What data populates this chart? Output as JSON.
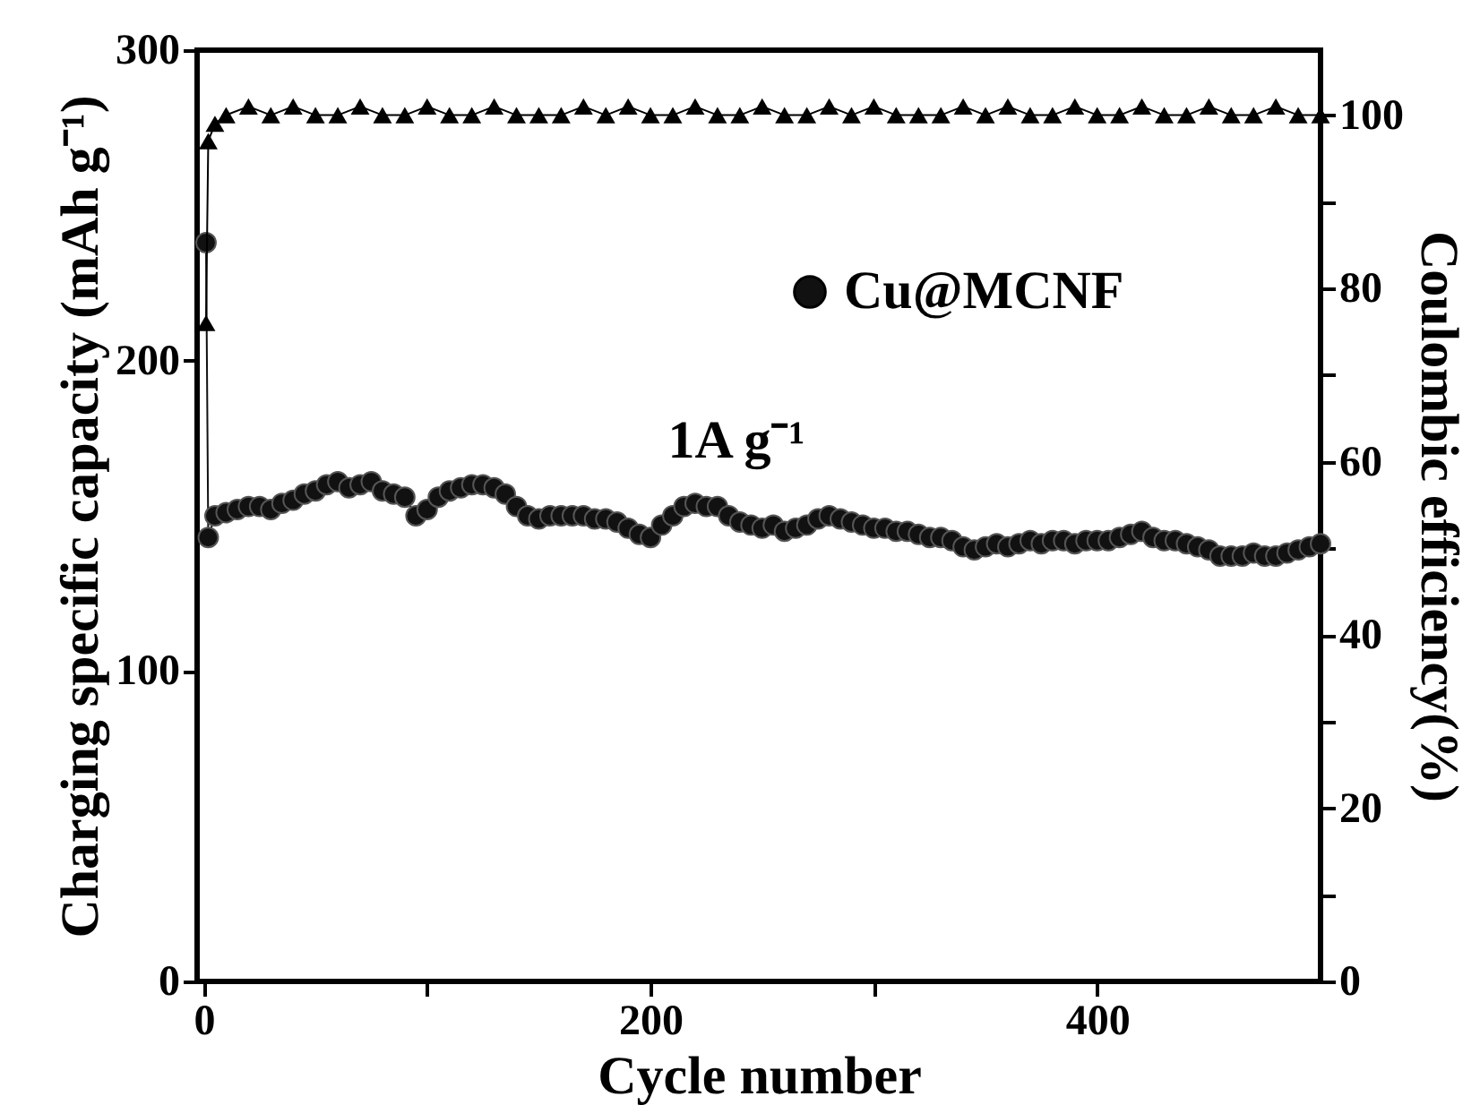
{
  "chart_data": {
    "type": "line",
    "xlabel": "Cycle number",
    "ylabel": "Charging specific capacity (mAh g⁻¹)",
    "y2label": "Coulombic efficiency(%)",
    "annotations": [
      "1A g⁻¹"
    ],
    "xlim": [
      -3,
      500
    ],
    "xticks": [
      0,
      {
        "value": 100,
        "label": null
      },
      200,
      {
        "value": 300,
        "label": null
      },
      400
    ],
    "ylim": [
      0,
      300
    ],
    "yticks": [
      0,
      100,
      200,
      300
    ],
    "y2lim": [
      0,
      107.5
    ],
    "y2ticks": [
      0,
      {
        "value": 10,
        "label": null
      },
      20,
      {
        "value": 30,
        "label": null
      },
      40,
      {
        "value": 50,
        "label": null
      },
      60,
      {
        "value": 70,
        "label": null
      },
      80,
      {
        "value": 90,
        "label": null
      },
      100
    ],
    "marker": "circle",
    "line_style": "solid",
    "grid": false,
    "legend": "top right",
    "series": [
      {
        "name": "Cu@MCNF",
        "color": "#111111",
        "x": [
          1,
          2,
          5,
          10,
          15,
          20,
          25,
          30,
          35,
          40,
          45,
          50,
          55,
          60,
          65,
          70,
          75,
          80,
          85,
          90,
          95,
          100,
          105,
          110,
          115,
          120,
          125,
          130,
          135,
          140,
          145,
          150,
          155,
          160,
          165,
          170,
          175,
          180,
          185,
          190,
          195,
          200,
          205,
          210,
          215,
          220,
          225,
          230,
          235,
          240,
          245,
          250,
          255,
          260,
          265,
          270,
          275,
          280,
          285,
          290,
          295,
          300,
          305,
          310,
          315,
          320,
          325,
          330,
          335,
          340,
          345,
          350,
          355,
          360,
          365,
          370,
          375,
          380,
          385,
          390,
          395,
          400,
          405,
          410,
          415,
          420,
          425,
          430,
          435,
          440,
          445,
          450,
          455,
          460,
          465,
          470,
          475,
          480,
          485,
          490,
          495,
          500
        ],
        "values": [
          238,
          143,
          150,
          151,
          152,
          153,
          153,
          152,
          154,
          155,
          157,
          158,
          160,
          161,
          159,
          160,
          161,
          158,
          157,
          156,
          150,
          152,
          156,
          158,
          159,
          160,
          160,
          159,
          157,
          153,
          150,
          149,
          150,
          150,
          150,
          150,
          149,
          149,
          148,
          146,
          144,
          143,
          147,
          150,
          153,
          154,
          153,
          153,
          150,
          148,
          147,
          146,
          147,
          145,
          146,
          147,
          149,
          150,
          149,
          148,
          147,
          146,
          146,
          145,
          145,
          144,
          143,
          143,
          142,
          140,
          139,
          140,
          141,
          140,
          141,
          142,
          141,
          142,
          142,
          141,
          142,
          142,
          142,
          143,
          144,
          145,
          143,
          142,
          142,
          141,
          140,
          139,
          137,
          137,
          137,
          138,
          137,
          137,
          138,
          139,
          140,
          141
        ]
      },
      {
        "color": "#000000",
        "marker": "triangle",
        "axis": "y2",
        "x": [
          1,
          2,
          5,
          10,
          20,
          30,
          40,
          50,
          60,
          70,
          80,
          90,
          100,
          110,
          120,
          130,
          140,
          150,
          160,
          170,
          180,
          190,
          200,
          210,
          220,
          230,
          240,
          250,
          260,
          270,
          280,
          290,
          300,
          310,
          320,
          330,
          340,
          350,
          360,
          370,
          380,
          390,
          400,
          410,
          420,
          430,
          440,
          450,
          460,
          470,
          480,
          490,
          500
        ],
        "values": [
          76,
          97,
          99,
          100,
          101,
          100,
          101,
          100,
          100,
          101,
          100,
          100,
          101,
          100,
          100,
          101,
          100,
          100,
          100,
          101,
          100,
          101,
          100,
          100,
          101,
          100,
          100,
          101,
          100,
          100,
          101,
          100,
          101,
          100,
          100,
          100,
          101,
          100,
          101,
          100,
          100,
          101,
          100,
          100,
          101,
          100,
          100,
          101,
          100,
          100,
          101,
          100,
          100
        ]
      }
    ]
  }
}
